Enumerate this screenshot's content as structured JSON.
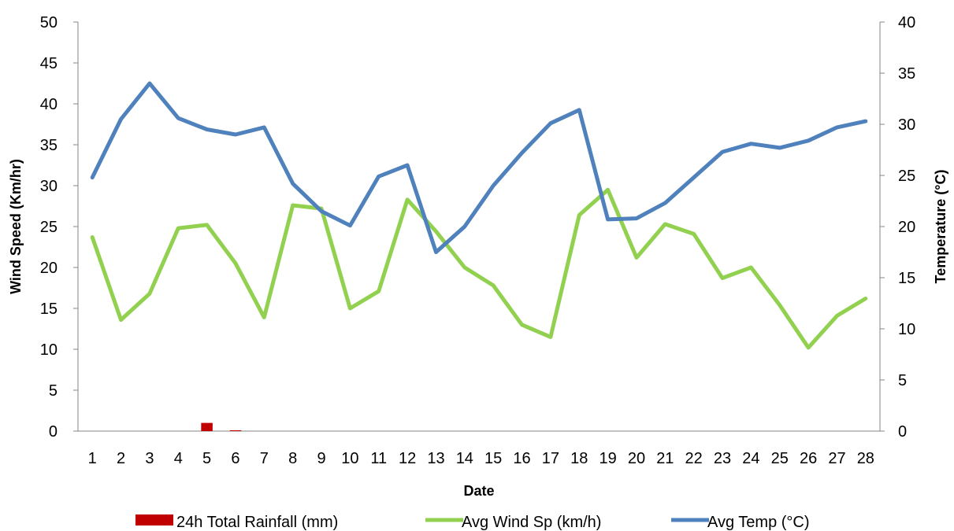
{
  "chart_data": {
    "type": "combo",
    "title": "",
    "xlabel": "Date",
    "ylabel_left": "Wind Speed (Km/hr)",
    "ylabel_right": "Temperature (°C)",
    "ylim_left": [
      0,
      50
    ],
    "ylim_right": [
      0,
      40
    ],
    "yticks_left": [
      0,
      5,
      10,
      15,
      20,
      25,
      30,
      35,
      40,
      45,
      50
    ],
    "yticks_right": [
      0,
      5,
      10,
      15,
      20,
      25,
      30,
      35,
      40
    ],
    "grid": false,
    "legend_position": "bottom",
    "categories": [
      "1",
      "2",
      "3",
      "4",
      "5",
      "6",
      "7",
      "8",
      "9",
      "10",
      "11",
      "12",
      "13",
      "14",
      "15",
      "16",
      "17",
      "18",
      "19",
      "20",
      "21",
      "22",
      "23",
      "24",
      "25",
      "26",
      "27",
      "28"
    ],
    "series": [
      {
        "name": "24h Total Rainfall (mm)",
        "type": "bar",
        "axis": "left",
        "color": "#c00000",
        "values": [
          0,
          0,
          0,
          0,
          1.0,
          0.1,
          0,
          0,
          0,
          0,
          0,
          0,
          0,
          0,
          0,
          0,
          0,
          0,
          0,
          0,
          0,
          0,
          0,
          0,
          0,
          0,
          0,
          0
        ]
      },
      {
        "name": "Avg Wind Sp (km/h)",
        "type": "line",
        "axis": "left",
        "color": "#92d050",
        "values": [
          23.7,
          13.6,
          16.8,
          24.8,
          25.2,
          20.5,
          13.9,
          27.6,
          27.2,
          15.0,
          17.1,
          28.3,
          24.4,
          20.0,
          17.8,
          13.0,
          11.5,
          26.4,
          29.5,
          21.2,
          25.3,
          24.1,
          18.7,
          20.0,
          15.4,
          10.2,
          14.1,
          16.2
        ]
      },
      {
        "name": "Avg Temp (°C)",
        "type": "line",
        "axis": "right",
        "color": "#4f81bd",
        "values": [
          24.8,
          30.5,
          34.0,
          30.6,
          29.5,
          29.0,
          29.7,
          24.2,
          21.5,
          20.1,
          24.9,
          26.0,
          17.5,
          20.0,
          24.0,
          27.2,
          30.1,
          31.4,
          20.7,
          20.8,
          22.3,
          24.8,
          27.3,
          28.1,
          27.7,
          28.4,
          29.7,
          30.3
        ]
      }
    ]
  }
}
